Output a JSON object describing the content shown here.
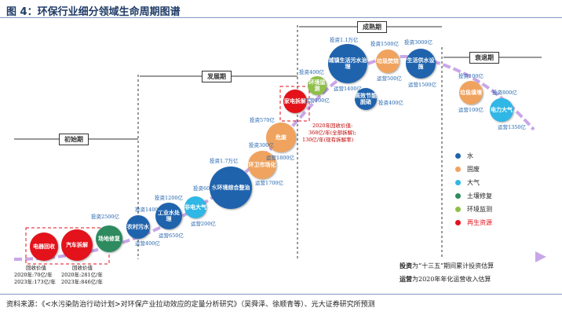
{
  "figure": {
    "title": "图 4：环保行业细分领域生命周期图谱",
    "source": "资料来源：《<水污染防治行动计划>对环保产业拉动效应的定量分析研究》（吴舜泽、徐顺青等）、光大证券研究所预测"
  },
  "chart_data": {
    "type": "scatter",
    "stages": [
      "初始期",
      "发展期",
      "成熟期",
      "衰退期"
    ],
    "legend": [
      {
        "name": "水",
        "color": "#1f63ad"
      },
      {
        "name": "固废",
        "color": "#f0a35e"
      },
      {
        "name": "大气",
        "color": "#2fb7e6"
      },
      {
        "name": "土壤修复",
        "color": "#2d8b5f"
      },
      {
        "name": "环境监测",
        "color": "#8fbf4a"
      },
      {
        "name": "再生资源",
        "color": "#e3121b"
      }
    ],
    "notes": {
      "invest": "投资为“十三五”期间累计投资估算",
      "invest_bold": "投资",
      "operate": "运营为2020年年化运营收入估算",
      "operate_bold": "运营"
    },
    "points": [
      {
        "key": "dianqi",
        "name": "电器回收",
        "category": "再生资源",
        "labels": [
          "回收价值",
          "2020年:70亿/年",
          "2023年:173亿/年"
        ]
      },
      {
        "key": "qiche",
        "name": "汽车拆解",
        "category": "再生资源",
        "labels": [
          "回收价值",
          "2020年:281亿/年",
          "2023年:846亿/年"
        ]
      },
      {
        "key": "changdi",
        "name": "场地修复",
        "category": "土壤修复",
        "labels": [
          "投资2500亿"
        ]
      },
      {
        "key": "nongcun",
        "name": "农村污水",
        "category": "水",
        "labels": [
          "投资1400亿",
          "运营400亿"
        ]
      },
      {
        "key": "gongye",
        "name": "工业水处理",
        "category": "水",
        "labels": [
          "投资1200亿",
          "运营650亿"
        ]
      },
      {
        "key": "feiqi",
        "name": "非电大气",
        "category": "大气",
        "labels": [
          "投资600亿",
          "运营200亿"
        ]
      },
      {
        "key": "shuihuanjing",
        "name": "水环境综合整治",
        "category": "水",
        "labels": [
          "投资1.7万亿"
        ]
      },
      {
        "key": "huanweishichang",
        "name": "环卫市场化",
        "category": "固废",
        "labels": [
          "投资300亿",
          "运营1700亿"
        ]
      },
      {
        "key": "weifei",
        "name": "危废",
        "category": "固废",
        "labels": [
          "投资570亿",
          "运营1800亿"
        ]
      },
      {
        "key": "jiadian",
        "name": "家电拆解",
        "category": "再生资源",
        "labels": [
          "2020年回收价值:",
          "368亿/年(全部拆解);",
          "130亿/年(现有拆解率)"
        ]
      },
      {
        "key": "jiance",
        "name": "环境监测",
        "category": "环境监测",
        "labels": [
          "投资400亿",
          "运营100亿"
        ]
      },
      {
        "key": "chengzhen",
        "name": "城镇生活污水治理",
        "category": "水",
        "labels": [
          "投资1.1万亿",
          "运营1400亿"
        ]
      },
      {
        "key": "gaoxiaonengji",
        "name": "高效节能脱硝",
        "category": "水",
        "labels": [
          "投资400亿"
        ]
      },
      {
        "key": "lajifashao",
        "name": "垃圾焚烧",
        "category": "固废",
        "labels": [
          "投资1500亿",
          "运营500亿"
        ]
      },
      {
        "key": "shengjiyongshui",
        "name": "生活供水设施",
        "category": "水",
        "labels": [
          "投资3000亿",
          "运营1500亿"
        ]
      },
      {
        "key": "lajitianmai",
        "name": "垃圾填埋",
        "category": "固废",
        "labels": [
          "投资100亿",
          "运营100亿"
        ]
      },
      {
        "key": "dianlidaqi",
        "name": "电力大气",
        "category": "大气",
        "labels": [
          "投资800亿",
          "运营1350亿"
        ]
      }
    ]
  }
}
